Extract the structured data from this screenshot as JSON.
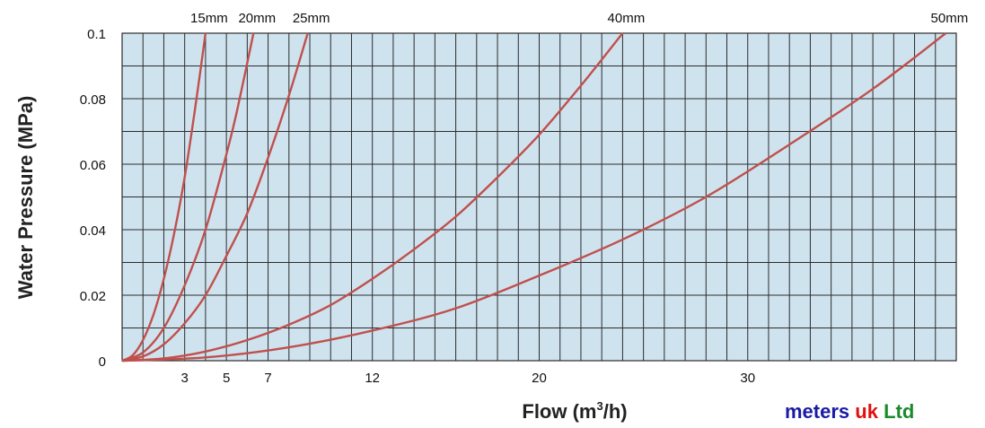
{
  "chart_data": {
    "type": "line",
    "title": "",
    "xlabel_main": "Flow (m",
    "xlabel_sup": "3",
    "xlabel_tail": "/h)",
    "ylabel": "Water Pressure (MPa)",
    "xlim": [
      0,
      40
    ],
    "ylim": [
      0,
      0.1
    ],
    "x_ticks": [
      3,
      5,
      7,
      12,
      20,
      30
    ],
    "y_ticks": [
      {
        "value": 0,
        "label": "0"
      },
      {
        "value": 0.02,
        "label": "0.02"
      },
      {
        "value": 0.04,
        "label": "0.04"
      },
      {
        "value": 0.06,
        "label": "0.06"
      },
      {
        "value": 0.08,
        "label": "0.08"
      },
      {
        "value": 0.1,
        "label": "0.1"
      }
    ],
    "grid": true,
    "series": [
      {
        "name": "15mm",
        "color": "#c0504d",
        "x": [
          0,
          0.5,
          1.0,
          1.5,
          2.0,
          2.5,
          3.0,
          3.5,
          4.0
        ],
        "y": [
          0,
          0.0016,
          0.0063,
          0.014,
          0.025,
          0.039,
          0.056,
          0.077,
          0.1
        ]
      },
      {
        "name": "20mm",
        "color": "#c0504d",
        "x": [
          0,
          1.0,
          2.0,
          3.0,
          4.0,
          5.0,
          5.5,
          6.3
        ],
        "y": [
          0,
          0.0025,
          0.01,
          0.023,
          0.04,
          0.063,
          0.076,
          0.1
        ]
      },
      {
        "name": "25mm",
        "color": "#c0504d",
        "x": [
          0,
          1.0,
          2.0,
          3.0,
          4.0,
          5.0,
          6.0,
          7.0,
          8.0,
          8.9
        ],
        "y": [
          0,
          0.0013,
          0.005,
          0.0114,
          0.02,
          0.032,
          0.045,
          0.062,
          0.081,
          0.1
        ]
      },
      {
        "name": "40mm",
        "color": "#c0504d",
        "x": [
          0,
          2,
          4,
          6,
          8,
          10,
          12,
          14,
          16,
          18,
          20,
          22,
          24
        ],
        "y": [
          0,
          0.0007,
          0.0028,
          0.0063,
          0.011,
          0.017,
          0.025,
          0.034,
          0.044,
          0.056,
          0.069,
          0.084,
          0.1
        ]
      },
      {
        "name": "50mm",
        "color": "#c0504d",
        "x": [
          0,
          4,
          8,
          12,
          16,
          20,
          24,
          28,
          32,
          36,
          39.5
        ],
        "y": [
          0,
          0.001,
          0.0041,
          0.0092,
          0.016,
          0.026,
          0.037,
          0.05,
          0.066,
          0.083,
          0.1
        ]
      }
    ]
  },
  "logo": {
    "part1": "meters",
    "part2": "uk",
    "part3": "Ltd",
    "color1": "#1a1aa6",
    "color2": "#e01010",
    "color3": "#1a8a2a"
  },
  "colors": {
    "plot_background": "#cfe3ef",
    "grid_line": "#2b2b2b",
    "curve": "#c0504d"
  }
}
